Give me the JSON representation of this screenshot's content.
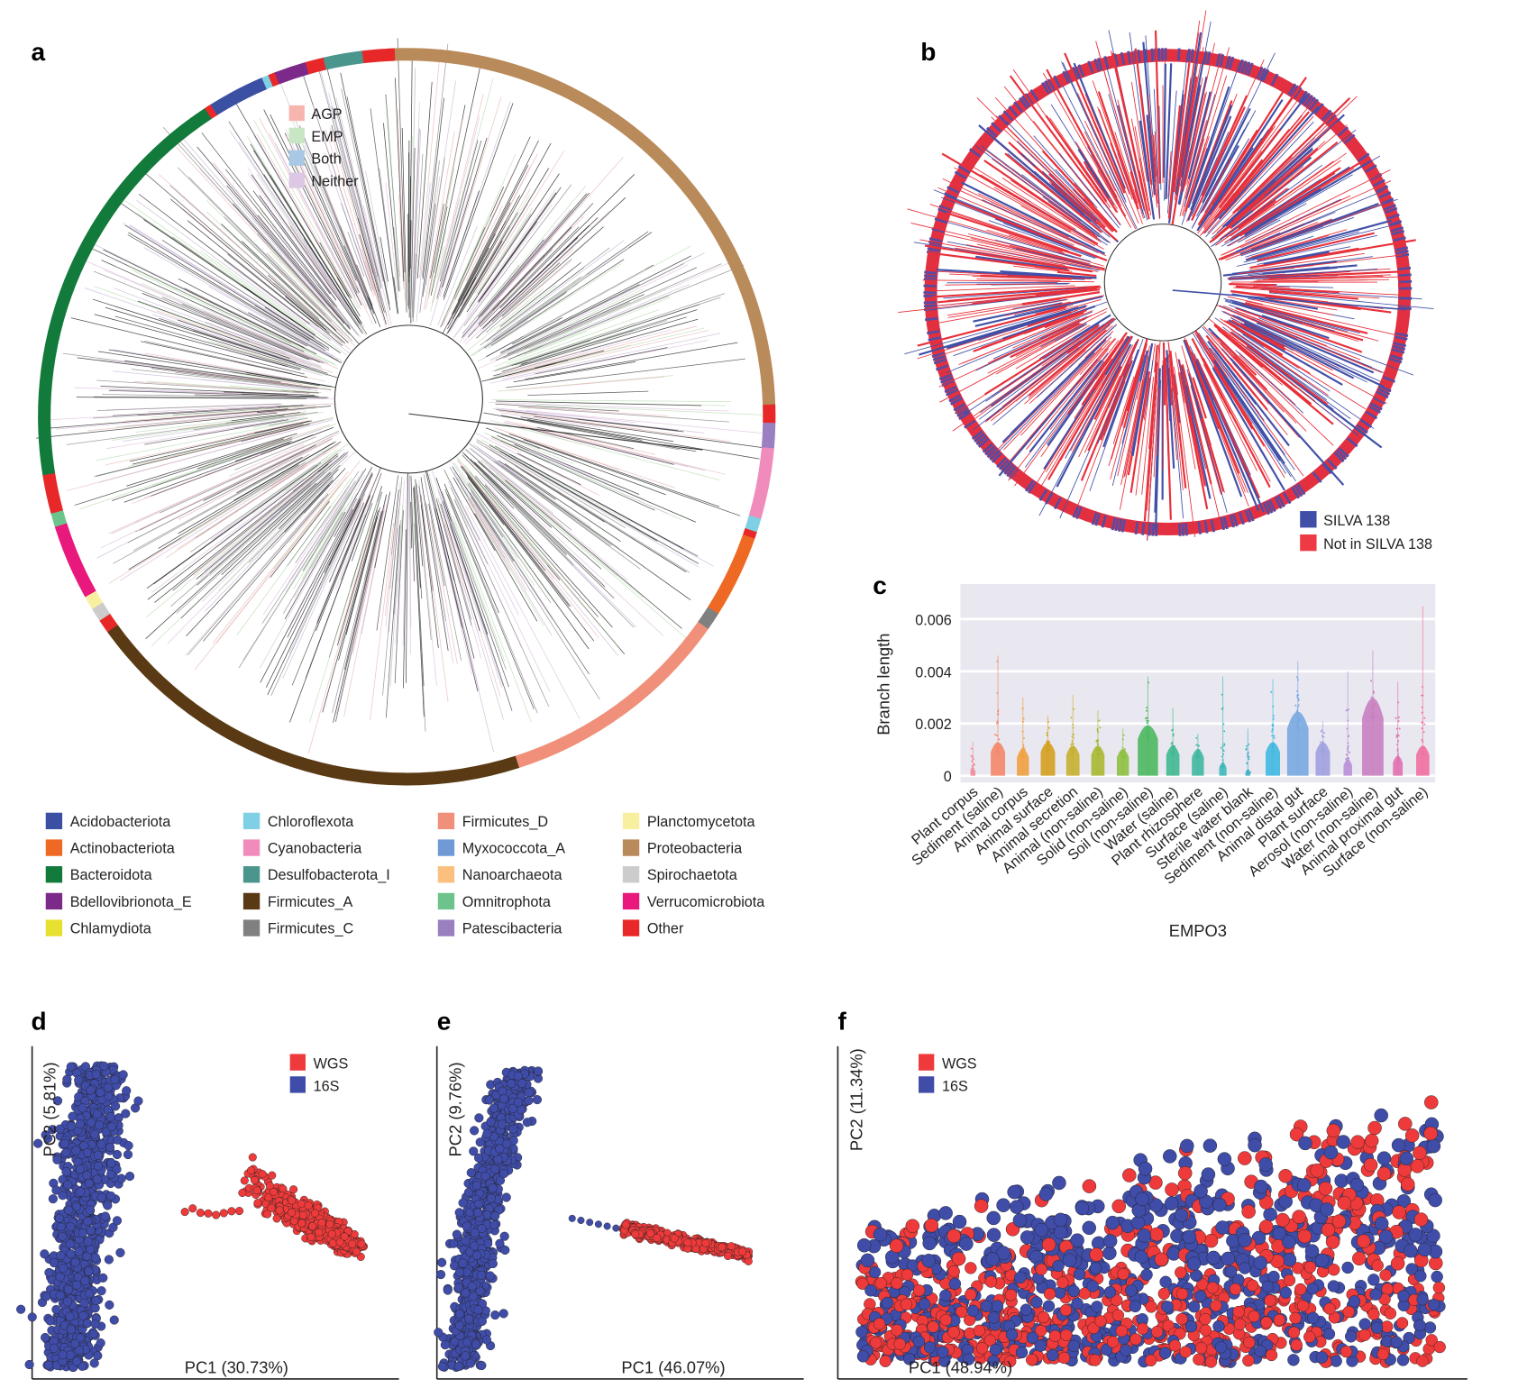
{
  "panels": {
    "a": "a",
    "b": "b",
    "c": "c",
    "d": "d",
    "e": "e",
    "f": "f"
  },
  "chart_data": [
    {
      "panel": "a",
      "type": "circular phylogenetic tree",
      "legend_inner": [
        {
          "label": "AGP",
          "color": "#f7b5b0"
        },
        {
          "label": "EMP",
          "color": "#c9e6c4"
        },
        {
          "label": "Both",
          "color": "#a9c8e4"
        },
        {
          "label": "Neither",
          "color": "#dcc8e4"
        }
      ],
      "legend_phyla": [
        {
          "label": "Acidobacteriota",
          "color": "#3b4fa3"
        },
        {
          "label": "Actinobacteriota",
          "color": "#ee6a24"
        },
        {
          "label": "Bacteroidota",
          "color": "#127a3a"
        },
        {
          "label": "Bdellovibrionota_E",
          "color": "#7b2a8a"
        },
        {
          "label": "Chlamydiota",
          "color": "#e8e030"
        },
        {
          "label": "Chloroflexota",
          "color": "#7fd0e4"
        },
        {
          "label": "Cyanobacteria",
          "color": "#f08cbc"
        },
        {
          "label": "Desulfobacterota_I",
          "color": "#4a958c"
        },
        {
          "label": "Firmicutes_A",
          "color": "#5a3a14"
        },
        {
          "label": "Firmicutes_C",
          "color": "#808080"
        },
        {
          "label": "Firmicutes_D",
          "color": "#f0907a"
        },
        {
          "label": "Myxococcota_A",
          "color": "#6f9ad6"
        },
        {
          "label": "Nanoarchaeota",
          "color": "#fbbf7e"
        },
        {
          "label": "Omnitrophota",
          "color": "#6cc48c"
        },
        {
          "label": "Patescibacteria",
          "color": "#9a80c0"
        },
        {
          "label": "Planctomycetota",
          "color": "#f8f0a0"
        },
        {
          "label": "Proteobacteria",
          "color": "#b98a5a"
        },
        {
          "label": "Spirochaetota",
          "color": "#cccccc"
        },
        {
          "label": "Verrucomicrobiota",
          "color": "#e8187c"
        },
        {
          "label": "Other",
          "color": "#e82828"
        }
      ],
      "ring_segments_pct": [
        {
          "phylum": "Proteobacteria",
          "pct": 25.3
        },
        {
          "phylum": "Other",
          "pct": 0.8
        },
        {
          "phylum": "Patescibacteria",
          "pct": 1.1
        },
        {
          "phylum": "Cyanobacteria",
          "pct": 3.1
        },
        {
          "phylum": "Chloroflexota",
          "pct": 0.6
        },
        {
          "phylum": "Other",
          "pct": 0.3
        },
        {
          "phylum": "Actinobacteriota",
          "pct": 3.6
        },
        {
          "phylum": "Firmicutes_C",
          "pct": 0.8
        },
        {
          "phylum": "Firmicutes_D",
          "pct": 10.3
        },
        {
          "phylum": "Firmicutes_A",
          "pct": 20.0
        },
        {
          "phylum": "Other",
          "pct": 0.6
        },
        {
          "phylum": "Spirochaetota",
          "pct": 0.6
        },
        {
          "phylum": "Planctomycetota",
          "pct": 0.6
        },
        {
          "phylum": "Verrucomicrobiota",
          "pct": 3.3
        },
        {
          "phylum": "Omnitrophota",
          "pct": 0.6
        },
        {
          "phylum": "Other",
          "pct": 1.7
        },
        {
          "phylum": "Bacteroidota",
          "pct": 18.3
        },
        {
          "phylum": "Other",
          "pct": 0.3
        },
        {
          "phylum": "Acidobacteriota",
          "pct": 2.5
        },
        {
          "phylum": "Chloroflexota",
          "pct": 0.3
        },
        {
          "phylum": "Other",
          "pct": 0.3
        },
        {
          "phylum": "Bdellovibrionota_E",
          "pct": 1.4
        },
        {
          "phylum": "Other",
          "pct": 0.8
        },
        {
          "phylum": "Desulfobacterota_I",
          "pct": 1.7
        },
        {
          "phylum": "Other",
          "pct": 1.4
        }
      ]
    },
    {
      "panel": "b",
      "type": "circular phylogenetic tree",
      "legend": [
        {
          "label": "SILVA 138",
          "color": "#3f4fa8"
        },
        {
          "label": "Not in SILVA 138",
          "color": "#ee3a44"
        }
      ]
    },
    {
      "panel": "c",
      "type": "scatter",
      "subtype": "beeswarm",
      "xlabel": "EMPO3",
      "ylabel": "Branch length",
      "ylim": [
        0,
        0.0072
      ],
      "yticks": [
        "0",
        "0.002",
        "0.004",
        "0.006"
      ],
      "ytick_values": [
        0,
        0.002,
        0.004,
        0.006
      ],
      "grid": true,
      "background": "#e9e8f0",
      "categories": [
        "Plant corpus",
        "Sediment (saline)",
        "Animal corpus",
        "Animal surface",
        "Animal secretion",
        "Animal (non-saline)",
        "Solid (non-saline)",
        "Soil (non-saline)",
        "Water (saline)",
        "Plant rhizosphere",
        "Surface (saline)",
        "Sterile water blank",
        "Sediment (non-saline)",
        "Animal distal gut",
        "Plant surface",
        "Aerosol (non-saline)",
        "Water (non-saline)",
        "Animal proximal gut",
        "Surface (non-saline)"
      ],
      "colors": [
        "#f28c9a",
        "#f4876a",
        "#f0a040",
        "#d4a020",
        "#c5b030",
        "#a8b832",
        "#8ec040",
        "#4cb860",
        "#40b890",
        "#40b8a0",
        "#40b8b8",
        "#40b0c8",
        "#40b8e0",
        "#78a8e0",
        "#a0a0e0",
        "#b890d8",
        "#c880c0",
        "#e070b0",
        "#f070a0"
      ],
      "max_approx": [
        0.0013,
        0.0046,
        0.003,
        0.0023,
        0.0031,
        0.0025,
        0.0018,
        0.0038,
        0.0026,
        0.0016,
        0.0038,
        0.0018,
        0.0037,
        0.0044,
        0.0021,
        0.004,
        0.0048,
        0.0036,
        0.0065
      ],
      "dense_upper_approx": [
        0.0001,
        0.0009,
        0.0007,
        0.0009,
        0.0008,
        0.0008,
        0.0007,
        0.0014,
        0.0008,
        0.0007,
        0.0003,
        0.0001,
        0.0009,
        0.0018,
        0.0009,
        0.0004,
        0.0022,
        0.0005,
        0.0008
      ]
    },
    {
      "panel": "d",
      "type": "scatter",
      "xlabel": "PC1 (30.73%)",
      "ylabel": "PC2 (5.81%)",
      "series": [
        {
          "name": "WGS",
          "color": "#ee3a3a"
        },
        {
          "name": "16S",
          "color": "#3f4ca8"
        }
      ]
    },
    {
      "panel": "e",
      "type": "scatter",
      "xlabel": "PC1 (46.07%)",
      "ylabel": "PC2 (9.76%)",
      "series": [
        {
          "name": "WGS",
          "color": "#ee3a3a"
        },
        {
          "name": "16S",
          "color": "#3f4ca8"
        }
      ]
    },
    {
      "panel": "f",
      "type": "scatter",
      "xlabel": "PC1 (48.94%)",
      "ylabel": "PC2 (11.34%)",
      "series": [
        {
          "name": "WGS",
          "color": "#ee3a3a"
        },
        {
          "name": "16S",
          "color": "#3f4ca8"
        }
      ]
    }
  ]
}
